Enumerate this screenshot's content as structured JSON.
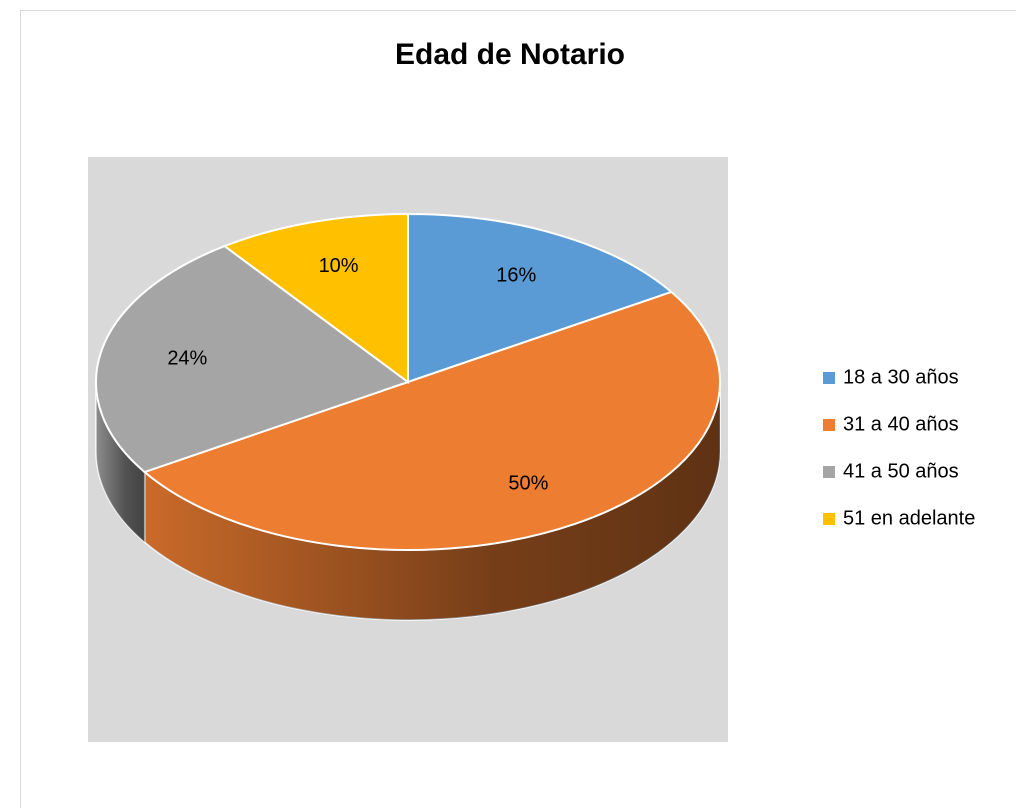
{
  "chart_data": {
    "type": "pie",
    "title": "Edad de Notario",
    "categories": [
      "18 a 30 años",
      "31 a 40 años",
      "41 a 50 años",
      "51 en adelante"
    ],
    "values": [
      16,
      50,
      24,
      10
    ],
    "value_labels": [
      "16%",
      "50%",
      "24%",
      "10%"
    ],
    "colors": [
      "#5b9bd5",
      "#ed7d31",
      "#a5a5a5",
      "#ffc000"
    ],
    "legend": "right",
    "three_d": true
  }
}
